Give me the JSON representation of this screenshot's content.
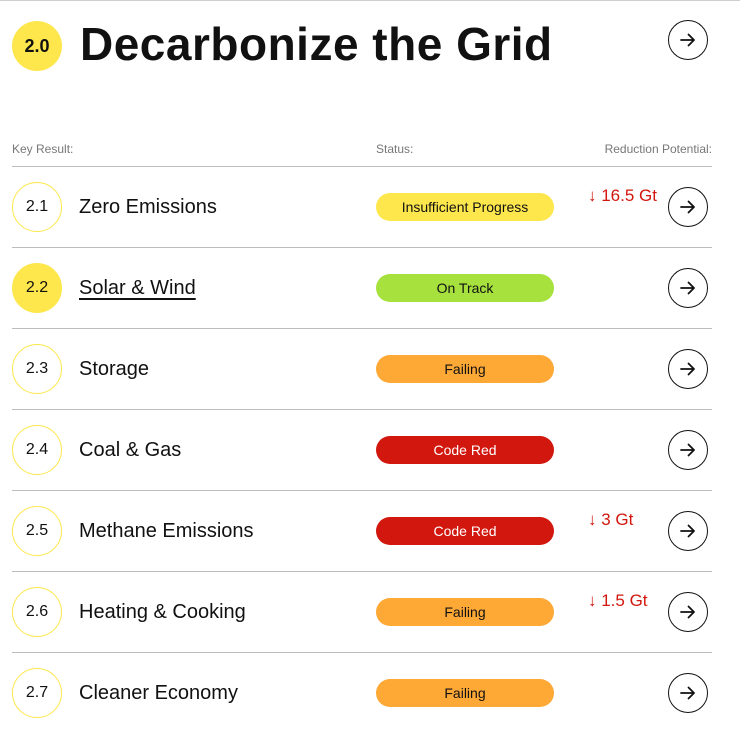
{
  "header": {
    "badge": "2.0",
    "title": "Decarbonize the Grid"
  },
  "columns": {
    "key_result": "Key Result:",
    "status": "Status:",
    "reduction": "Reduction Potential:"
  },
  "colors": {
    "yellow": "#fde74c",
    "on_track": "#a6e13e",
    "failing": "#fea836",
    "code_red": "#d2170e",
    "reduction_text": "#d2170e"
  },
  "rows": [
    {
      "num": "2.1",
      "title": "Zero Emissions",
      "status": "Insufficient Progress",
      "reduction": "↓ 16.5 Gt"
    },
    {
      "num": "2.2",
      "title": "Solar & Wind",
      "status": "On Track",
      "reduction": ""
    },
    {
      "num": "2.3",
      "title": "Storage",
      "status": "Failing",
      "reduction": ""
    },
    {
      "num": "2.4",
      "title": "Coal & Gas",
      "status": "Code Red",
      "reduction": ""
    },
    {
      "num": "2.5",
      "title": "Methane Emissions",
      "status": "Code Red",
      "reduction": "↓ 3 Gt"
    },
    {
      "num": "2.6",
      "title": "Heating & Cooking",
      "status": "Failing",
      "reduction": "↓ 1.5 Gt"
    },
    {
      "num": "2.7",
      "title": "Cleaner Economy",
      "status": "Failing",
      "reduction": ""
    }
  ]
}
